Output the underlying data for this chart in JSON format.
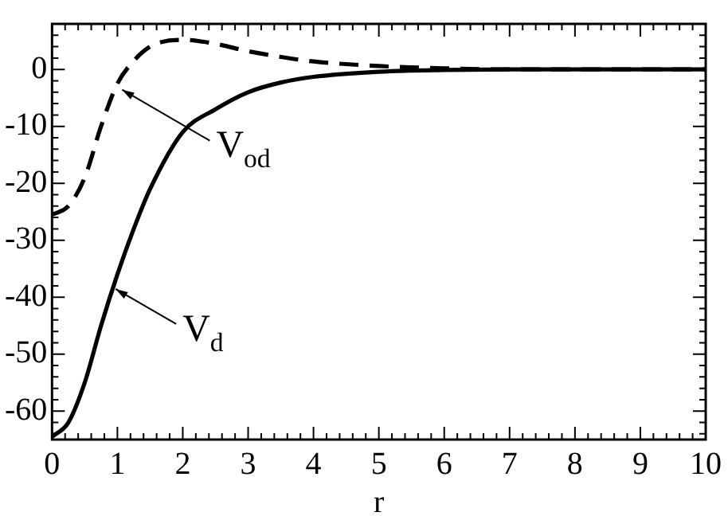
{
  "chart_data": {
    "type": "line",
    "xlabel": "r",
    "xlim": [
      0,
      10
    ],
    "xticks": [
      0,
      1,
      2,
      3,
      4,
      5,
      6,
      7,
      8,
      9,
      10
    ],
    "ylim": [
      -65,
      8
    ],
    "yticks": [
      -60,
      -50,
      -40,
      -30,
      -20,
      -10,
      0
    ],
    "grid": false,
    "legend": false,
    "marker": "none",
    "series": [
      {
        "color": "#000000",
        "line_style": "dashed",
        "x": [
          0,
          0.25,
          0.5,
          0.75,
          1,
          1.25,
          1.5,
          1.75,
          2,
          2.5,
          3,
          3.5,
          4,
          5,
          6,
          7,
          8,
          10
        ],
        "values": [
          -25.5,
          -24,
          -19,
          -10,
          -2.5,
          1.5,
          4,
          5,
          5.2,
          4.5,
          3.2,
          2.2,
          1.4,
          0.6,
          0.2,
          0,
          0,
          0
        ]
      },
      {
        "color": "#000000",
        "line_style": "solid",
        "x": [
          0,
          0.25,
          0.5,
          0.75,
          1,
          1.25,
          1.5,
          2,
          2.5,
          3,
          3.5,
          4,
          5,
          6,
          7,
          8,
          10
        ],
        "values": [
          -64.5,
          -62,
          -55,
          -45,
          -36,
          -28,
          -21,
          -11,
          -7,
          -4,
          -2.3,
          -1.3,
          -0.4,
          -0.1,
          0,
          0,
          0
        ]
      }
    ],
    "annotations": [
      {
        "text": "V$_{od}$",
        "x": 1.0,
        "y": -3
      },
      {
        "text": "V$_{d}$",
        "x": 0.9,
        "y": -38
      }
    ]
  }
}
